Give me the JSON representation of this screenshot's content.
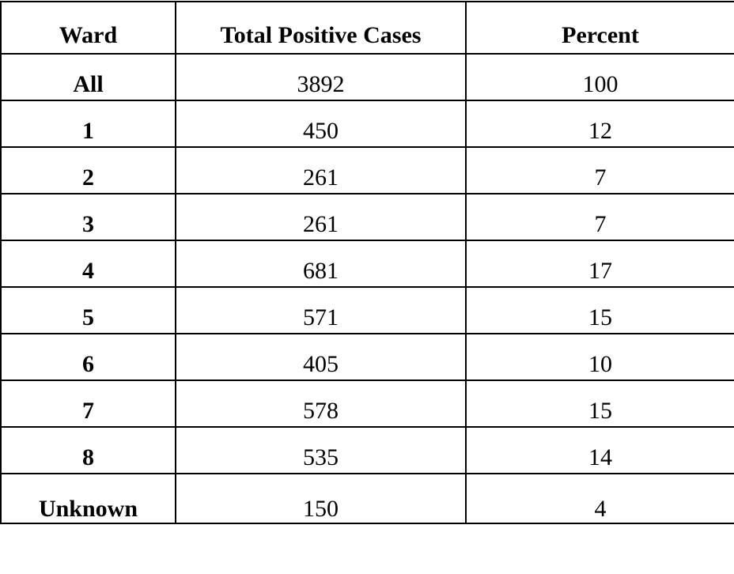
{
  "table": {
    "headers": [
      "Ward",
      "Total Positive Cases",
      "Percent"
    ],
    "rows": [
      {
        "ward": "All",
        "total": "3892",
        "percent": "100"
      },
      {
        "ward": "1",
        "total": "450",
        "percent": "12"
      },
      {
        "ward": "2",
        "total": "261",
        "percent": "7"
      },
      {
        "ward": "3",
        "total": "261",
        "percent": "7"
      },
      {
        "ward": "4",
        "total": "681",
        "percent": "17"
      },
      {
        "ward": "5",
        "total": "571",
        "percent": "15"
      },
      {
        "ward": "6",
        "total": "405",
        "percent": "10"
      },
      {
        "ward": "7",
        "total": "578",
        "percent": "15"
      },
      {
        "ward": "8",
        "total": "535",
        "percent": "14"
      },
      {
        "ward": "Unknown",
        "total": "150",
        "percent": "4"
      }
    ]
  }
}
